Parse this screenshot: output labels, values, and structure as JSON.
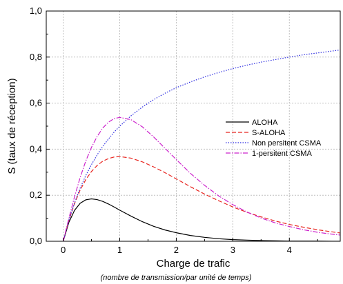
{
  "chart_data": {
    "type": "line",
    "xlabel": "Charge de trafic",
    "xlabel_sub": "(nombre de transmission/par unité de temps)",
    "ylabel": "S (taux de réception)",
    "xlim": [
      -0.3,
      4.9
    ],
    "ylim": [
      0,
      1.0
    ],
    "x_ticks": [
      0,
      1,
      2,
      3,
      4
    ],
    "x_tick_labels": [
      "0",
      "1",
      "2",
      "3",
      "4"
    ],
    "y_ticks": [
      0,
      0.2,
      0.4,
      0.6,
      0.8,
      1.0
    ],
    "y_tick_labels": [
      "0,0",
      "0,2",
      "0,4",
      "0,6",
      "0,8",
      "1,0"
    ],
    "grid": true,
    "legend_position": "right",
    "x": [
      0,
      0.1,
      0.2,
      0.3,
      0.4,
      0.5,
      0.6,
      0.7,
      0.8,
      0.9,
      1.0,
      1.2,
      1.4,
      1.6,
      1.8,
      2.0,
      2.25,
      2.5,
      2.75,
      3.0,
      3.25,
      3.5,
      3.75,
      4.0,
      4.25,
      4.5,
      4.75,
      4.9
    ],
    "series": [
      {
        "name": "ALOHA",
        "color": "#000000",
        "dash": "solid",
        "values": [
          0,
          0.082,
          0.134,
          0.165,
          0.18,
          0.184,
          0.181,
          0.173,
          0.162,
          0.149,
          0.135,
          0.109,
          0.085,
          0.065,
          0.049,
          0.037,
          0.025,
          0.017,
          0.011,
          0.007,
          0.005,
          0.003,
          0.002,
          0.001,
          0.001,
          0.001,
          0.0,
          0.0
        ]
      },
      {
        "name": "S-ALOHA",
        "color": "#e8251f",
        "dash": "dashed",
        "values": [
          0,
          0.09,
          0.164,
          0.222,
          0.268,
          0.303,
          0.329,
          0.348,
          0.359,
          0.366,
          0.368,
          0.361,
          0.345,
          0.323,
          0.298,
          0.271,
          0.237,
          0.205,
          0.176,
          0.149,
          0.126,
          0.106,
          0.088,
          0.073,
          0.061,
          0.05,
          0.041,
          0.036
        ]
      },
      {
        "name": "Non persitent CSMA",
        "color": "#2a2ae0",
        "dash": "dotted",
        "values": [
          0,
          0.091,
          0.167,
          0.231,
          0.286,
          0.333,
          0.375,
          0.412,
          0.444,
          0.474,
          0.5,
          0.545,
          0.583,
          0.615,
          0.643,
          0.667,
          0.692,
          0.714,
          0.733,
          0.75,
          0.765,
          0.778,
          0.789,
          0.8,
          0.81,
          0.818,
          0.826,
          0.831
        ]
      },
      {
        "name": "1-persitent CSMA",
        "color": "#cc22cc",
        "dash": "dashdot",
        "values": [
          0,
          0.099,
          0.193,
          0.277,
          0.349,
          0.408,
          0.455,
          0.492,
          0.517,
          0.533,
          0.538,
          0.528,
          0.497,
          0.453,
          0.404,
          0.355,
          0.295,
          0.243,
          0.197,
          0.159,
          0.127,
          0.101,
          0.08,
          0.064,
          0.05,
          0.039,
          0.031,
          0.027
        ]
      }
    ]
  }
}
